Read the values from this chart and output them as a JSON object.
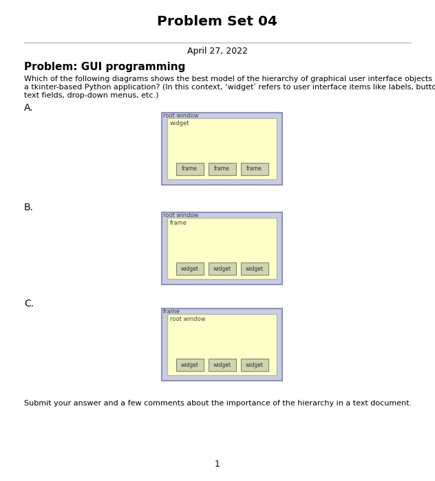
{
  "title": "Problem Set 04",
  "date": "April 27, 2022",
  "problem_label": "Problem: GUI programming",
  "description": "Which of the following diagrams shows the best model of the hierarchy of graphical user interface objects in\na tkinter-based Python application? (In this context, ‘widget’ refers to user interface items like labels, buttons,\ntext fields, drop-down menus, etc.)",
  "submit_text": "Submit your answer and a few comments about the importance of the hierarchy in a text document.",
  "page_number": "1",
  "bg_color": "#ffffff",
  "text_color": "#000000",
  "outer_box_fill": "#c8cce8",
  "outer_box_edge": "#9090b8",
  "inner_box_fill": "#ffffc8",
  "inner_box_stroke": "#b0b890",
  "widget_fill": "#d0d4b0",
  "widget_stroke": "#808868",
  "diagrams": [
    {
      "label": "A.",
      "outer_label": "root window",
      "inner_label": "widget",
      "children_labels": [
        "frame",
        "frame",
        "frame"
      ]
    },
    {
      "label": "B.",
      "outer_label": "root window",
      "inner_label": "frame",
      "children_labels": [
        "widget",
        "widget",
        "widget"
      ]
    },
    {
      "label": "C.",
      "outer_label": "frame",
      "inner_label": "root window",
      "children_labels": [
        "widget",
        "widget",
        "widget"
      ]
    }
  ]
}
